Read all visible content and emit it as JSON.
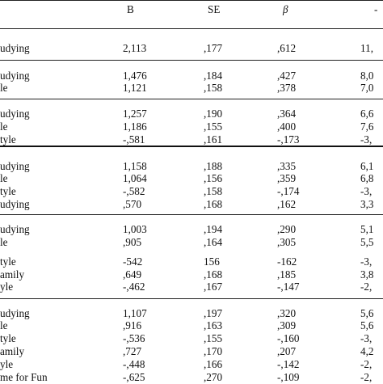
{
  "table": {
    "headers": {
      "b": "B",
      "se": "SE",
      "beta": "β",
      "t": "-"
    },
    "blocks": [
      {
        "rows": [
          {
            "label": "udying",
            "b": "2,113",
            "se": ",177",
            "beta": ",612",
            "t": "11,"
          }
        ]
      },
      {
        "rows": [
          {
            "label": "udying",
            "b": "1,476",
            "se": ",184",
            "beta": ",427",
            "t": "8,0"
          },
          {
            "label": "le",
            "b": "1,121",
            "se": ",158",
            "beta": ",378",
            "t": "7,0"
          }
        ]
      },
      {
        "rows": [
          {
            "label": "udying",
            "b": "1,257",
            "se": ",190",
            "beta": ",364",
            "t": "6,6"
          },
          {
            "label": "le",
            "b": "1,186",
            "se": ",155",
            "beta": ",400",
            "t": "7,6"
          },
          {
            "label": "tyle",
            "b": "-,581",
            "se": ",161",
            "beta": "-,173",
            "t": "-3,"
          }
        ]
      },
      {
        "rows": [
          {
            "label": "udying",
            "b": "1,158",
            "se": ",188",
            "beta": ",335",
            "t": "6,1"
          },
          {
            "label": "le",
            "b": "1,064",
            "se": ",156",
            "beta": ",359",
            "t": "6,8"
          },
          {
            "label": "tyle",
            "b": "-,582",
            "se": ",158",
            "beta": "-,174",
            "t": "-3,"
          },
          {
            "label": "udying",
            "b": ",570",
            "se": ",168",
            "beta": ",162",
            "t": "3,3"
          }
        ]
      },
      {
        "rows": [
          {
            "label": "udying",
            "b": "1,003",
            "se": ",194",
            "beta": ",290",
            "t": "5,1"
          },
          {
            "label": "le",
            "b": ",905",
            "se": ",164",
            "beta": ",305",
            "t": "5,5"
          },
          {
            "label": "tyle",
            "b": "-542",
            "se": "156",
            "beta": "-162",
            "t": "-3,"
          },
          {
            "label": "amily",
            "b": ",649",
            "se": ",168",
            "beta": ",185",
            "t": "3,8"
          },
          {
            "label": "yle",
            "b": "-,462",
            "se": ",167",
            "beta": "-,147",
            "t": "-2,"
          }
        ]
      },
      {
        "rows": [
          {
            "label": "udying",
            "b": "1,107",
            "se": ",197",
            "beta": ",320",
            "t": "5,6"
          },
          {
            "label": "le",
            "b": ",916",
            "se": ",163",
            "beta": ",309",
            "t": "5,6"
          },
          {
            "label": "tyle",
            "b": "-,536",
            "se": ",155",
            "beta": "-,160",
            "t": "-3,"
          },
          {
            "label": "amily",
            "b": ",727",
            "se": ",170",
            "beta": ",207",
            "t": "4,2"
          },
          {
            "label": "yle",
            "b": "-,448",
            "se": ",166",
            "beta": "-,142",
            "t": "-2,"
          },
          {
            "label": "me for Fun",
            "b": "-,625",
            "se": ",270",
            "beta": "-,109",
            "t": "-2,"
          }
        ]
      }
    ]
  }
}
